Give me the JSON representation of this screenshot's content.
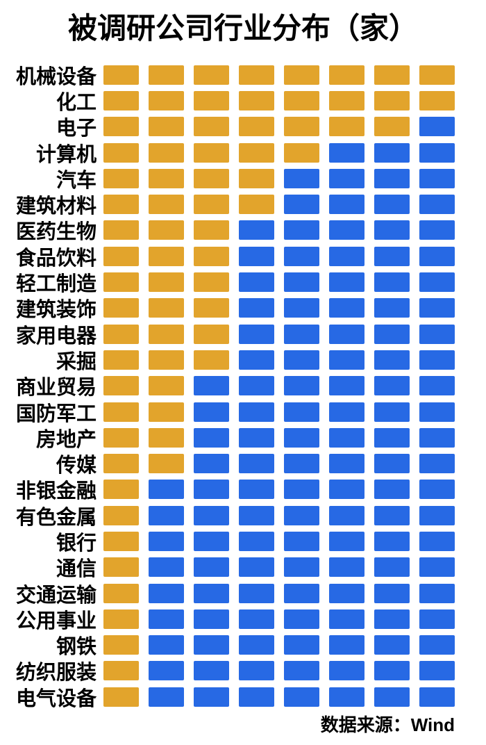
{
  "title": "被调研公司行业分布（家）",
  "source_note": "数据来源：Wind",
  "colors": {
    "filled": "#E2A42C",
    "empty": "#2769E4",
    "text": "#000000",
    "background": "#FFFFFF"
  },
  "chart_data": {
    "type": "bar",
    "variant": "unit-pictogram",
    "title": "被调研公司行业分布（家）",
    "units_per_row": 8,
    "legend_position": "none",
    "grid": false,
    "categories": [
      "机械设备",
      "化工",
      "电子",
      "计算机",
      "汽车",
      "建筑材料",
      "医药生物",
      "食品饮料",
      "轻工制造",
      "建筑装饰",
      "家用电器",
      "采掘",
      "商业贸易",
      "国防军工",
      "房地产",
      "传媒",
      "非银金融",
      "有色金属",
      "银行",
      "通信",
      "交通运输",
      "公用事业",
      "钢铁",
      "纺织服装",
      "电气设备"
    ],
    "values": [
      8,
      8,
      7,
      5,
      4,
      4,
      3,
      3,
      3,
      3,
      3,
      3,
      2,
      2,
      2,
      2,
      1,
      1,
      1,
      1,
      1,
      1,
      1,
      1,
      1
    ]
  }
}
